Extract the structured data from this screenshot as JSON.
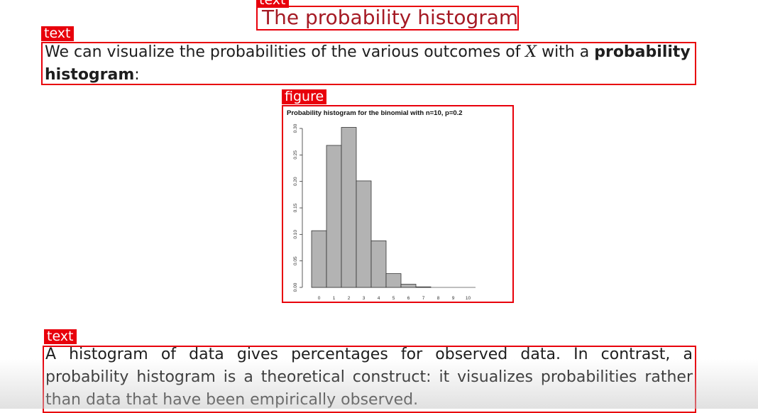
{
  "annotations": {
    "title_tag": "text",
    "para1_tag": "text",
    "figure_tag": "figure",
    "para2_tag": "text"
  },
  "slide": {
    "title": "The probability histogram",
    "para1": {
      "part1": "We can visualize the probabilities of the various outcomes of ",
      "var": "X",
      "part2": " with a ",
      "bold": "probability histogram",
      "part3": ":"
    },
    "para2": "A histogram of data gives percentages for observed data. In contrast, a probability histogram is a theoretical construct: it visualizes probabilities rather than data that have been empirically observed."
  },
  "colors": {
    "annotation_red": "#e8000b",
    "title": "#a51a24",
    "bar_fill": "#b3b3b3"
  },
  "chart_data": {
    "type": "bar",
    "title": "Probability histogram for the binomial with n=10, p=0.2",
    "categories": [
      "0",
      "1",
      "2",
      "3",
      "4",
      "5",
      "6",
      "7",
      "8",
      "9",
      "10"
    ],
    "values": [
      0.107,
      0.268,
      0.302,
      0.201,
      0.088,
      0.026,
      0.006,
      0.001,
      0.0001,
      0.0,
      0.0
    ],
    "yticks": [
      "0.00",
      "0.05",
      "0.10",
      "0.15",
      "0.20",
      "0.25",
      "0.30"
    ],
    "ylim": [
      0,
      0.3
    ],
    "xlabel": "",
    "ylabel": "",
    "grid": false
  }
}
